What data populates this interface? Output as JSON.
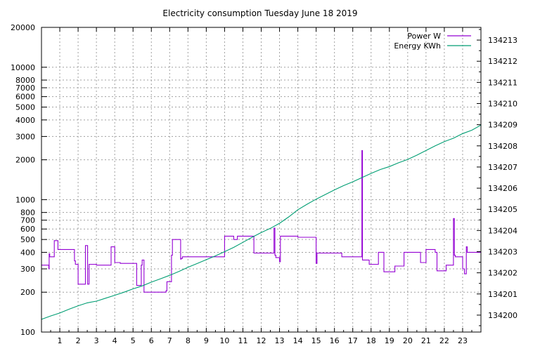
{
  "chart_data": {
    "type": "line",
    "title": "Electricity consumption Tuesday June 18 2019",
    "xlabel": "",
    "ylabel": "",
    "xlim": [
      0,
      24
    ],
    "ylim": [
      100,
      20000
    ],
    "y_scale": "log",
    "y2lim": [
      134199.2,
      134213.6
    ],
    "x_ticks": [
      "1",
      "2",
      "3",
      "4",
      "5",
      "6",
      "7",
      "8",
      "9",
      "10",
      "11",
      "12",
      "13",
      "14",
      "15",
      "16",
      "17",
      "18",
      "19",
      "20",
      "21",
      "22",
      "23"
    ],
    "y_ticks": [
      "20000",
      "10000",
      "8000",
      "7000",
      "6000",
      "5000",
      "4000",
      "3000",
      "2000",
      "1000",
      "800",
      "700",
      "600",
      "500",
      "400",
      "300",
      "200",
      "100"
    ],
    "y2_ticks": [
      "134213",
      "134212",
      "134211",
      "134210",
      "134209",
      "134208",
      "134207",
      "134206",
      "134205",
      "134204",
      "134203",
      "134202",
      "134201",
      "134200"
    ],
    "grid": true,
    "legend_position": "top-right",
    "colors": {
      "power": "#9400d3",
      "energy": "#009e73"
    },
    "series": [
      {
        "name": "Power W",
        "axis": "left",
        "x": [
          0,
          0.4,
          0.4,
          0.42,
          0.42,
          0.45,
          0.45,
          0.7,
          0.7,
          0.9,
          0.9,
          1.8,
          1.8,
          1.85,
          1.85,
          2.0,
          2.0,
          2.4,
          2.4,
          2.52,
          2.52,
          2.55,
          2.55,
          2.6,
          2.6,
          3.0,
          3.0,
          3.8,
          3.8,
          4.0,
          4.0,
          4.3,
          4.3,
          5.2,
          5.2,
          5.45,
          5.45,
          5.5,
          5.5,
          5.6,
          5.6,
          6.8,
          6.8,
          6.85,
          6.85,
          7.1,
          7.1,
          7.15,
          7.15,
          7.6,
          7.6,
          7.63,
          7.63,
          7.7,
          7.7,
          10.0,
          10.0,
          10.05,
          10.05,
          10.5,
          10.5,
          10.7,
          10.7,
          11.6,
          11.6,
          11.8,
          11.8,
          12.7,
          12.7,
          12.75,
          12.75,
          12.8,
          12.8,
          13.0,
          13.0,
          13.05,
          13.05,
          13.1,
          13.1,
          14.0,
          14.0,
          15.0,
          15.0,
          15.05,
          15.05,
          15.1,
          15.1,
          16.4,
          16.4,
          17.5,
          17.5,
          17.53,
          17.53,
          17.9,
          17.9,
          18.4,
          18.4,
          18.7,
          18.7,
          19.3,
          19.3,
          19.8,
          19.8,
          20.7,
          20.7,
          21.0,
          21.0,
          21.5,
          21.5,
          21.6,
          21.6,
          22.1,
          22.1,
          22.5,
          22.5,
          22.55,
          22.55,
          22.6,
          22.6,
          23.0,
          23.0,
          23.1,
          23.1,
          23.2,
          23.2,
          23.25,
          23.25,
          24.0
        ],
        "values": [
          320,
          320,
          300,
          300,
          390,
          390,
          370,
          370,
          490,
          490,
          420,
          420,
          345,
          345,
          325,
          325,
          230,
          230,
          450,
          450,
          230,
          230,
          230,
          230,
          325,
          325,
          320,
          320,
          440,
          440,
          335,
          335,
          330,
          330,
          225,
          225,
          320,
          320,
          350,
          350,
          200,
          200,
          205,
          205,
          240,
          240,
          380,
          380,
          500,
          500,
          355,
          355,
          360,
          360,
          370,
          370,
          530,
          530,
          530,
          530,
          500,
          500,
          530,
          530,
          395,
          395,
          395,
          395,
          610,
          610,
          380,
          380,
          365,
          365,
          340,
          340,
          530,
          530,
          530,
          530,
          520,
          520,
          330,
          330,
          395,
          395,
          395,
          395,
          370,
          370,
          2350,
          2350,
          350,
          350,
          325,
          325,
          400,
          400,
          285,
          285,
          315,
          315,
          400,
          400,
          335,
          335,
          420,
          420,
          400,
          400,
          290,
          290,
          320,
          320,
          720,
          720,
          380,
          380,
          370,
          370,
          300,
          300,
          275,
          275,
          440,
          440,
          400,
          400
        ]
      },
      {
        "name": "Energy KWh",
        "axis": "right",
        "x": [
          0,
          0.5,
          1.0,
          1.5,
          2.0,
          2.5,
          3.0,
          3.5,
          4.0,
          4.5,
          5.0,
          5.5,
          6.0,
          6.5,
          7.0,
          7.5,
          8.0,
          8.5,
          9.0,
          9.5,
          10.0,
          10.5,
          11.0,
          11.5,
          12.0,
          12.5,
          13.0,
          13.5,
          14.0,
          14.5,
          15.0,
          15.5,
          16.0,
          16.5,
          17.0,
          17.5,
          18.0,
          18.5,
          19.0,
          19.5,
          20.0,
          20.5,
          21.0,
          21.5,
          22.0,
          22.5,
          23.0,
          23.5,
          24.0
        ],
        "values": [
          134199.8,
          134199.96,
          134200.1,
          134200.28,
          134200.44,
          134200.58,
          134200.66,
          134200.8,
          134200.94,
          134201.08,
          134201.24,
          134201.38,
          134201.56,
          134201.72,
          134201.88,
          134202.06,
          134202.26,
          134202.44,
          134202.62,
          134202.8,
          134203.0,
          134203.2,
          134203.44,
          134203.68,
          134203.9,
          134204.1,
          134204.34,
          134204.64,
          134204.98,
          134205.24,
          134205.48,
          134205.7,
          134205.92,
          134206.12,
          134206.3,
          134206.5,
          134206.7,
          134206.88,
          134207.02,
          134207.2,
          134207.36,
          134207.56,
          134207.78,
          134208.0,
          134208.2,
          134208.36,
          134208.58,
          134208.74,
          134208.98
        ]
      }
    ]
  }
}
